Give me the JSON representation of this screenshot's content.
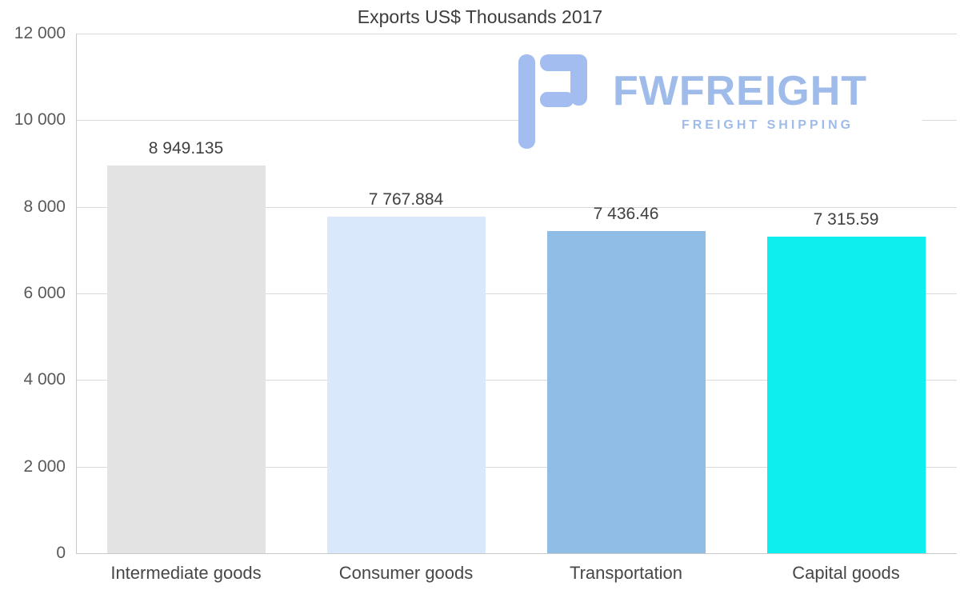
{
  "chart_data": {
    "type": "bar",
    "title": "Exports US$ Thousands 2017",
    "categories": [
      "Intermediate goods",
      "Consumer goods",
      "Transportation",
      "Capital goods"
    ],
    "values": [
      8949.135,
      7767.884,
      7436.46,
      7315.59
    ],
    "value_labels": [
      "8 949.135",
      "7 767.884",
      "7 436.46",
      "7 315.59"
    ],
    "bar_colors": [
      "#e3e3e3",
      "#d9e8fa",
      "#8fbde5",
      "#0defef"
    ],
    "xlabel": "",
    "ylabel": "",
    "ylim": [
      0,
      12000
    ],
    "yticks": [
      12000,
      10000,
      8000,
      6000,
      4000,
      2000,
      0
    ],
    "ytick_labels": [
      "12 000",
      "10 000",
      "8 000",
      "6 000",
      "4 000",
      "2 000",
      "0"
    ],
    "grid": true,
    "legend": "none"
  },
  "watermark": {
    "brand": "FWFREIGHT",
    "tagline": "FREIGHT SHIPPING",
    "brand_color": "#9fbbea",
    "icon_color": "#a3bdf0"
  }
}
